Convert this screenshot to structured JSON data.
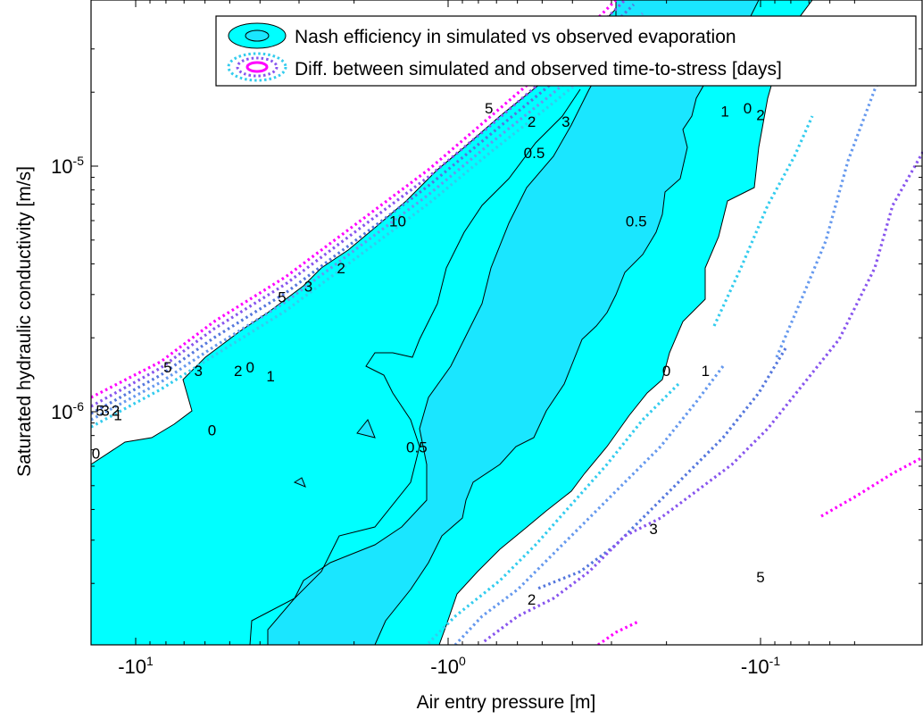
{
  "chart_data": {
    "type": "contour",
    "xlabel": "Air entry pressure [m]",
    "ylabel": "Saturated hydraulic conductivity [m/s]",
    "x_scale": "log (negative pressure)",
    "y_scale": "log",
    "x_ticks": [
      {
        "base": "-10",
        "exp": "1",
        "value": -10
      },
      {
        "base": "-10",
        "exp": "0",
        "value": -1
      },
      {
        "base": "-10",
        "exp": "-1",
        "value": -0.1
      }
    ],
    "y_ticks": [
      {
        "base": "10",
        "exp": "-5",
        "value": 1e-05
      },
      {
        "base": "10",
        "exp": "-6",
        "value": 1e-06
      }
    ],
    "grid": false,
    "legend_position": "top-right",
    "legend": [
      "Nash efficiency in simulated vs observed evaporation",
      "Diff. between simulated and observed time-to-stress [days]"
    ],
    "colors": {
      "nash_level_0": "#00ffff",
      "nash_level_05": "#1ae6ff",
      "contour_line": "#000000",
      "diff_1": "#33ccee",
      "diff_2": "#6699ee",
      "diff_3": "#5577dd",
      "diff_5": "#8855ee",
      "diff_10": "#ff00ff"
    },
    "nash_contour_levels": [
      "0",
      "0.5"
    ],
    "diff_contour_levels": [
      "1",
      "2",
      "3",
      "5",
      "10"
    ],
    "contour_labels": [
      {
        "text": "0",
        "x": -0.11,
        "y": 1.7e-05
      },
      {
        "text": "0",
        "x": -0.2,
        "y": 1.45e-06
      },
      {
        "text": "0",
        "x": -5.7,
        "y": 8.3e-07
      },
      {
        "text": "0",
        "x": -13.4,
        "y": 6.7e-07
      },
      {
        "text": "0",
        "x": -4.3,
        "y": 1.5e-06
      },
      {
        "text": "0.5",
        "x": -0.53,
        "y": 1.12e-05
      },
      {
        "text": "0.5",
        "x": -0.25,
        "y": 5.9e-06
      },
      {
        "text": "0.5",
        "x": -1.26,
        "y": 7.1e-07
      },
      {
        "text": "1",
        "x": -0.13,
        "y": 1.65e-05
      },
      {
        "text": "1",
        "x": -0.15,
        "y": 1.45e-06
      },
      {
        "text": "1",
        "x": -3.7,
        "y": 1.38e-06
      },
      {
        "text": "1",
        "x": -11.4,
        "y": 9.6e-07
      },
      {
        "text": "2",
        "x": -0.1,
        "y": 1.6e-05
      },
      {
        "text": "2",
        "x": -0.54,
        "y": 1.5e-05
      },
      {
        "text": "2",
        "x": -2.2,
        "y": 3.8e-06
      },
      {
        "text": "2",
        "x": -4.7,
        "y": 1.45e-06
      },
      {
        "text": "2",
        "x": -11.6,
        "y": 1e-06
      },
      {
        "text": "2",
        "x": -0.54,
        "y": 1.7e-07
      },
      {
        "text": "3",
        "x": -0.42,
        "y": 1.5e-05
      },
      {
        "text": "3",
        "x": -2.8,
        "y": 3.2e-06
      },
      {
        "text": "3",
        "x": -6.3,
        "y": 1.45e-06
      },
      {
        "text": "3",
        "x": -12.5,
        "y": 1e-06
      },
      {
        "text": "3",
        "x": -0.22,
        "y": 3.3e-07
      },
      {
        "text": "5",
        "x": -0.74,
        "y": 1.7e-05
      },
      {
        "text": "5",
        "x": -3.4,
        "y": 2.9e-06
      },
      {
        "text": "5",
        "x": -7.9,
        "y": 1.5e-06
      },
      {
        "text": "5",
        "x": -13,
        "y": 1e-06
      },
      {
        "text": "5",
        "x": -0.1,
        "y": 2.1e-07
      },
      {
        "text": "10",
        "x": -1.45,
        "y": 5.9e-06
      }
    ]
  }
}
